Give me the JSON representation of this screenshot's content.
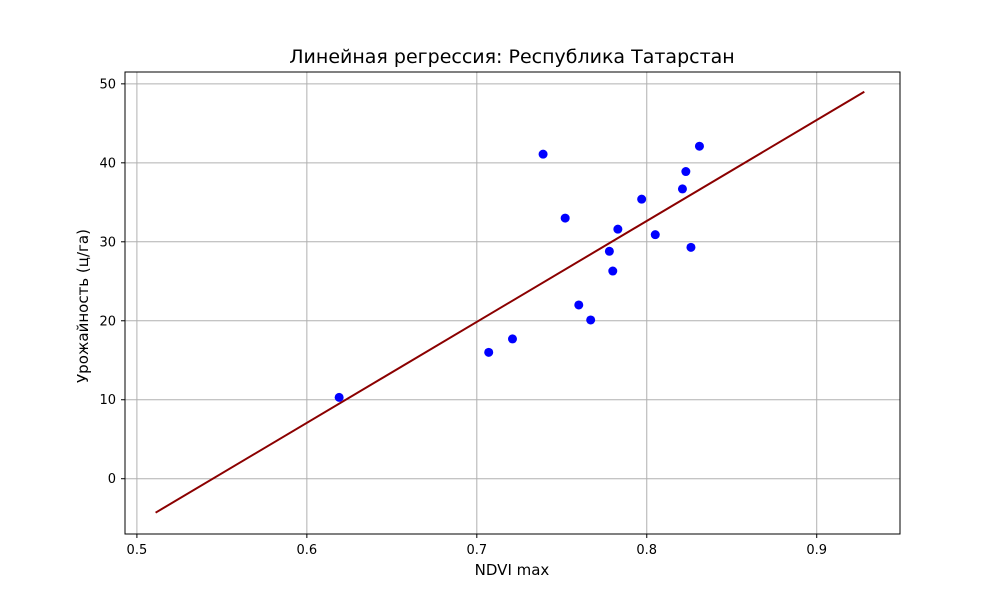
{
  "chart_data": {
    "type": "scatter",
    "title": "Линейная регрессия: Республика Татарстан",
    "xlabel": "NDVI max",
    "ylabel": "Урожайность (ц/га)",
    "xlim": [
      0.493,
      0.949
    ],
    "ylim": [
      -7,
      51.5
    ],
    "xticks": [
      0.5,
      0.6,
      0.7,
      0.8,
      0.9
    ],
    "yticks": [
      0,
      10,
      20,
      30,
      40,
      50
    ],
    "grid": true,
    "series": [
      {
        "type": "scatter",
        "color": "#0000ff",
        "points": [
          {
            "x": 0.619,
            "y": 10.3
          },
          {
            "x": 0.707,
            "y": 16.0
          },
          {
            "x": 0.721,
            "y": 17.7
          },
          {
            "x": 0.739,
            "y": 41.1
          },
          {
            "x": 0.752,
            "y": 33.0
          },
          {
            "x": 0.76,
            "y": 22.0
          },
          {
            "x": 0.767,
            "y": 20.1
          },
          {
            "x": 0.778,
            "y": 28.8
          },
          {
            "x": 0.78,
            "y": 26.3
          },
          {
            "x": 0.783,
            "y": 31.6
          },
          {
            "x": 0.797,
            "y": 35.4
          },
          {
            "x": 0.805,
            "y": 30.9
          },
          {
            "x": 0.821,
            "y": 36.7
          },
          {
            "x": 0.823,
            "y": 38.9
          },
          {
            "x": 0.826,
            "y": 29.3
          },
          {
            "x": 0.831,
            "y": 42.1
          }
        ]
      },
      {
        "type": "line",
        "color": "#8b0000",
        "points": [
          {
            "x": 0.511,
            "y": -4.3
          },
          {
            "x": 0.928,
            "y": 49.0
          }
        ]
      }
    ]
  }
}
